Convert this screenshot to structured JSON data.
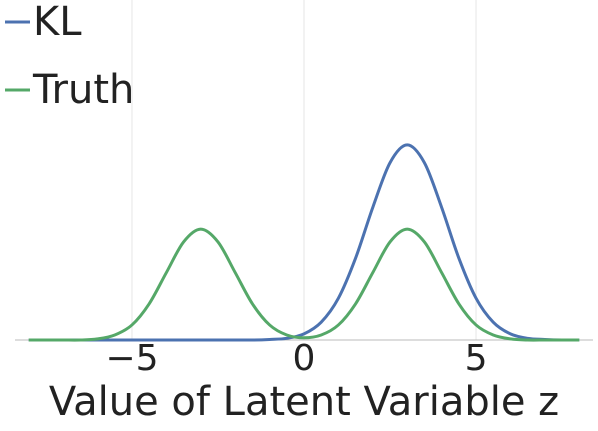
{
  "chart_data": {
    "type": "line",
    "x_label": "Value of Latent Variable z",
    "x": [
      -8,
      -7.5,
      -7,
      -6.5,
      -6,
      -5.5,
      -5,
      -4.5,
      -4,
      -3.5,
      -3,
      -2.5,
      -2,
      -1.5,
      -1,
      -0.5,
      0,
      0.5,
      1,
      1.5,
      2,
      2.5,
      3,
      3.5,
      4,
      4.5,
      5,
      5.5,
      6,
      6.5,
      7,
      7.5,
      8
    ],
    "series": [
      {
        "name": "KL",
        "color": "#4c72b0",
        "values": [
          0,
          0,
          0,
          0,
          0,
          0,
          0,
          0,
          0,
          0,
          0,
          0,
          0,
          0,
          0.001,
          0.003,
          0.011,
          0.032,
          0.075,
          0.147,
          0.238,
          0.318,
          0.35,
          0.318,
          0.238,
          0.147,
          0.075,
          0.032,
          0.011,
          0.003,
          0.001,
          0,
          0
        ]
      },
      {
        "name": "Truth",
        "color": "#55a868",
        "values": [
          0,
          0,
          0,
          0,
          0.002,
          0.009,
          0.027,
          0.065,
          0.121,
          0.176,
          0.199,
          0.176,
          0.121,
          0.065,
          0.027,
          0.009,
          0.004,
          0.009,
          0.027,
          0.065,
          0.121,
          0.176,
          0.199,
          0.176,
          0.121,
          0.065,
          0.027,
          0.009,
          0.002,
          0,
          0,
          0,
          0
        ]
      }
    ],
    "xlim": [
      -8.4,
      8.4
    ],
    "xticks": [
      {
        "value": -5,
        "label": "−5"
      },
      0,
      5
    ],
    "ylim": [
      0,
      0.61
    ],
    "grid": true,
    "legend": "upper left"
  }
}
